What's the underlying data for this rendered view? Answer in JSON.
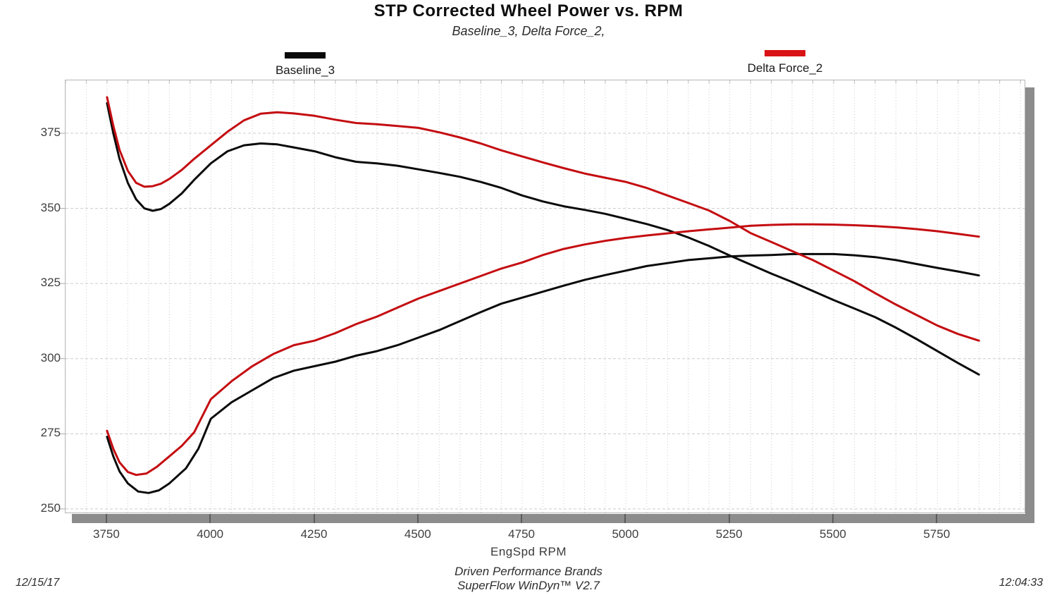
{
  "header": {
    "title": "STP Corrected Wheel Power vs. RPM",
    "subtitle": "Baseline_3,  Delta Force_2,"
  },
  "footer": {
    "brand_line1": "Driven Performance Brands",
    "brand_line2": "SuperFlow WinDyn™  V2.7",
    "date": "12/15/17",
    "time": "12:04:33"
  },
  "chart_data": {
    "type": "line",
    "title": "STP Corrected Wheel Power vs. RPM",
    "subtitle": "Baseline_3, Delta Force_2,",
    "xlabel": "EngSpd  RPM",
    "ylabel": "",
    "xlim": [
      3650,
      5960
    ],
    "ylim": [
      248.8,
      392.6
    ],
    "x_ticks": [
      3750,
      4000,
      4250,
      4500,
      4750,
      5000,
      5250,
      5500,
      5750
    ],
    "y_ticks": [
      250,
      275,
      300,
      325,
      350,
      375
    ],
    "x_minor_step": 50,
    "grid": {
      "vertical": "dotted-minor-every-50rpm",
      "horizontal": "dashed-major-every-25",
      "color": "#cccccc"
    },
    "legend_position": "top",
    "legend": [
      {
        "label": "Baseline_3",
        "color": "#0a0a0a"
      },
      {
        "label": "Delta Force_2",
        "color": "#d81215"
      }
    ],
    "series": [
      {
        "name": "Baseline_3",
        "curve": "upper",
        "color": "#0a0a0a",
        "points": [
          [
            3750,
            385
          ],
          [
            3765,
            375
          ],
          [
            3780,
            366.5
          ],
          [
            3800,
            358.5
          ],
          [
            3820,
            353
          ],
          [
            3840,
            350
          ],
          [
            3860,
            349.2
          ],
          [
            3880,
            349.8
          ],
          [
            3900,
            351.5
          ],
          [
            3930,
            355
          ],
          [
            3960,
            359.5
          ],
          [
            4000,
            365
          ],
          [
            4040,
            369
          ],
          [
            4080,
            371
          ],
          [
            4120,
            371.6
          ],
          [
            4160,
            371.3
          ],
          [
            4200,
            370.3
          ],
          [
            4250,
            369
          ],
          [
            4300,
            367
          ],
          [
            4350,
            365.5
          ],
          [
            4400,
            365
          ],
          [
            4450,
            364.2
          ],
          [
            4500,
            363
          ],
          [
            4550,
            361.8
          ],
          [
            4600,
            360.5
          ],
          [
            4650,
            358.8
          ],
          [
            4700,
            356.8
          ],
          [
            4750,
            354.3
          ],
          [
            4800,
            352.3
          ],
          [
            4850,
            350.7
          ],
          [
            4900,
            349.5
          ],
          [
            4950,
            348.2
          ],
          [
            5000,
            346.5
          ],
          [
            5050,
            344.8
          ],
          [
            5100,
            342.8
          ],
          [
            5150,
            340.3
          ],
          [
            5200,
            337.5
          ],
          [
            5250,
            334.3
          ],
          [
            5300,
            331.3
          ],
          [
            5350,
            328.3
          ],
          [
            5400,
            325.5
          ],
          [
            5450,
            322.5
          ],
          [
            5500,
            319.5
          ],
          [
            5550,
            316.7
          ],
          [
            5600,
            313.8
          ],
          [
            5650,
            310.3
          ],
          [
            5700,
            306.5
          ],
          [
            5750,
            302.5
          ],
          [
            5800,
            298.5
          ],
          [
            5850,
            294.7
          ]
        ]
      },
      {
        "name": "Baseline_3",
        "curve": "lower",
        "color": "#0a0a0a",
        "points": [
          [
            3750,
            274
          ],
          [
            3765,
            267.5
          ],
          [
            3780,
            262.5
          ],
          [
            3800,
            258.5
          ],
          [
            3825,
            255.8
          ],
          [
            3850,
            255.3
          ],
          [
            3875,
            256.2
          ],
          [
            3900,
            258.5
          ],
          [
            3940,
            263.5
          ],
          [
            3970,
            270
          ],
          [
            4000,
            280
          ],
          [
            4050,
            285.5
          ],
          [
            4100,
            289.5
          ],
          [
            4150,
            293.5
          ],
          [
            4200,
            296
          ],
          [
            4250,
            297.5
          ],
          [
            4300,
            299
          ],
          [
            4350,
            301
          ],
          [
            4400,
            302.5
          ],
          [
            4450,
            304.5
          ],
          [
            4500,
            307
          ],
          [
            4550,
            309.5
          ],
          [
            4600,
            312.5
          ],
          [
            4650,
            315.5
          ],
          [
            4700,
            318.3
          ],
          [
            4750,
            320.3
          ],
          [
            4800,
            322.3
          ],
          [
            4850,
            324.3
          ],
          [
            4900,
            326.2
          ],
          [
            4950,
            327.8
          ],
          [
            5000,
            329.3
          ],
          [
            5050,
            330.8
          ],
          [
            5100,
            331.8
          ],
          [
            5150,
            332.8
          ],
          [
            5200,
            333.4
          ],
          [
            5250,
            334
          ],
          [
            5300,
            334.3
          ],
          [
            5350,
            334.5
          ],
          [
            5400,
            334.8
          ],
          [
            5450,
            334.8
          ],
          [
            5500,
            334.8
          ],
          [
            5550,
            334.4
          ],
          [
            5600,
            333.8
          ],
          [
            5650,
            332.8
          ],
          [
            5700,
            331.5
          ],
          [
            5750,
            330.2
          ],
          [
            5800,
            329
          ],
          [
            5850,
            327.7
          ]
        ]
      },
      {
        "name": "Delta Force_2",
        "curve": "upper",
        "color": "#c40d11",
        "points": [
          [
            3750,
            387
          ],
          [
            3765,
            377.5
          ],
          [
            3780,
            369.5
          ],
          [
            3800,
            362.5
          ],
          [
            3820,
            358.5
          ],
          [
            3840,
            357.2
          ],
          [
            3860,
            357.4
          ],
          [
            3880,
            358.2
          ],
          [
            3900,
            359.8
          ],
          [
            3930,
            362.8
          ],
          [
            3960,
            366.5
          ],
          [
            4000,
            371
          ],
          [
            4040,
            375.5
          ],
          [
            4080,
            379.3
          ],
          [
            4120,
            381.5
          ],
          [
            4160,
            382
          ],
          [
            4200,
            381.6
          ],
          [
            4250,
            380.8
          ],
          [
            4300,
            379.5
          ],
          [
            4350,
            378.4
          ],
          [
            4400,
            378
          ],
          [
            4450,
            377.4
          ],
          [
            4500,
            376.8
          ],
          [
            4550,
            375.3
          ],
          [
            4600,
            373.6
          ],
          [
            4650,
            371.6
          ],
          [
            4700,
            369.3
          ],
          [
            4750,
            367.3
          ],
          [
            4800,
            365.3
          ],
          [
            4850,
            363.4
          ],
          [
            4900,
            361.6
          ],
          [
            4950,
            360.2
          ],
          [
            5000,
            358.8
          ],
          [
            5050,
            356.8
          ],
          [
            5100,
            354.3
          ],
          [
            5150,
            351.8
          ],
          [
            5200,
            349.3
          ],
          [
            5250,
            345.8
          ],
          [
            5300,
            341.8
          ],
          [
            5350,
            338.8
          ],
          [
            5400,
            335.8
          ],
          [
            5450,
            332.8
          ],
          [
            5500,
            329.3
          ],
          [
            5550,
            325.8
          ],
          [
            5600,
            321.8
          ],
          [
            5650,
            318
          ],
          [
            5700,
            314.5
          ],
          [
            5750,
            311
          ],
          [
            5800,
            308.2
          ],
          [
            5850,
            306
          ]
        ]
      },
      {
        "name": "Delta Force_2",
        "curve": "lower",
        "color": "#c40d11",
        "points": [
          [
            3750,
            276
          ],
          [
            3765,
            270
          ],
          [
            3780,
            265.5
          ],
          [
            3800,
            262.3
          ],
          [
            3820,
            261.3
          ],
          [
            3845,
            261.8
          ],
          [
            3870,
            264
          ],
          [
            3900,
            267.5
          ],
          [
            3930,
            271
          ],
          [
            3960,
            275.5
          ],
          [
            4000,
            286.5
          ],
          [
            4050,
            292.5
          ],
          [
            4100,
            297.5
          ],
          [
            4150,
            301.5
          ],
          [
            4200,
            304.5
          ],
          [
            4250,
            306
          ],
          [
            4300,
            308.5
          ],
          [
            4350,
            311.5
          ],
          [
            4400,
            314
          ],
          [
            4450,
            317
          ],
          [
            4500,
            320
          ],
          [
            4550,
            322.5
          ],
          [
            4600,
            325
          ],
          [
            4650,
            327.5
          ],
          [
            4700,
            330
          ],
          [
            4750,
            332
          ],
          [
            4800,
            334.5
          ],
          [
            4850,
            336.5
          ],
          [
            4900,
            338
          ],
          [
            4950,
            339.2
          ],
          [
            5000,
            340.2
          ],
          [
            5050,
            341
          ],
          [
            5100,
            341.7
          ],
          [
            5150,
            342.4
          ],
          [
            5200,
            343
          ],
          [
            5250,
            343.6
          ],
          [
            5300,
            344.2
          ],
          [
            5350,
            344.5
          ],
          [
            5400,
            344.7
          ],
          [
            5450,
            344.7
          ],
          [
            5500,
            344.6
          ],
          [
            5550,
            344.4
          ],
          [
            5600,
            344.1
          ],
          [
            5650,
            343.7
          ],
          [
            5700,
            343.1
          ],
          [
            5750,
            342.4
          ],
          [
            5800,
            341.5
          ],
          [
            5850,
            340.6
          ]
        ]
      }
    ]
  }
}
